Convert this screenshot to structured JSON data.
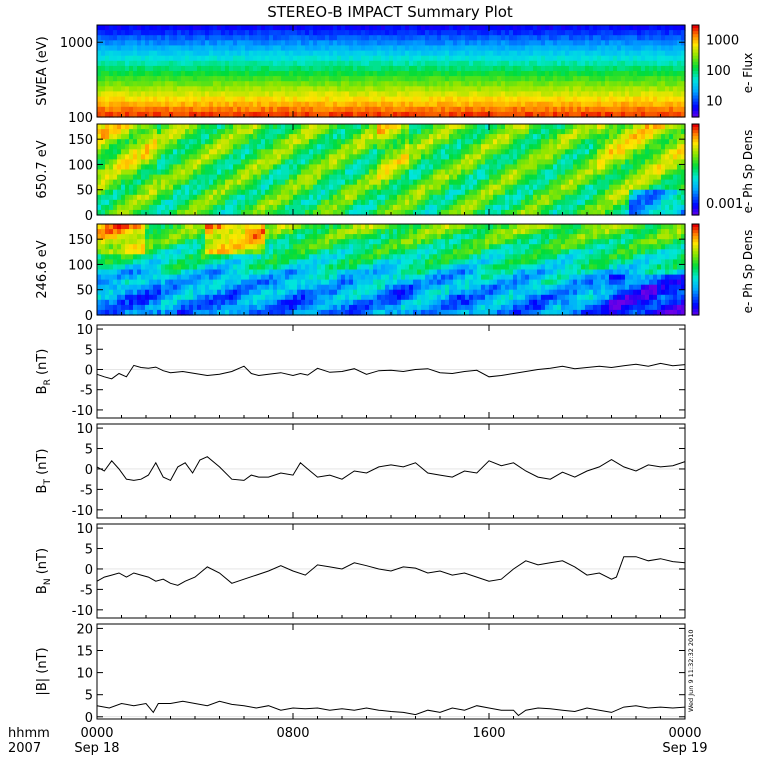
{
  "title": "STEREO-B IMPACT Summary Plot",
  "timestamp": "Wed Jun  9 11:32:32 2010",
  "footer": {
    "time_label": "hhmm",
    "year_label": "2007"
  },
  "chart_data": {
    "type": "multi-panel time series",
    "x_ticks": [
      {
        "time": "0000",
        "date": "Sep 18",
        "hour": 0
      },
      {
        "time": "0800",
        "date": "",
        "hour": 8
      },
      {
        "time": "1600",
        "date": "",
        "hour": 16
      },
      {
        "time": "0000",
        "date": "Sep 19",
        "hour": 24
      }
    ],
    "xlim_hours": [
      0,
      24
    ],
    "panels": [
      {
        "id": "swea",
        "type": "heatmap",
        "ylabel": "SWEA (eV)",
        "yscale": "log",
        "ylim": [
          100,
          1700
        ],
        "yticks": [
          100,
          1000
        ],
        "ytick_labels": [
          "100",
          "1000"
        ],
        "colorbar": {
          "label": "e- Flux",
          "scale": "log",
          "ticks": [
            "10",
            "100",
            "1000"
          ]
        }
      },
      {
        "id": "pad_650",
        "type": "heatmap",
        "ylabel": "650.7 eV",
        "ylim": [
          0,
          180
        ],
        "yticks": [
          0,
          50,
          100,
          150
        ],
        "colorbar": {
          "label": "e- Ph Sp Dens",
          "ticks": [
            "0.001"
          ]
        }
      },
      {
        "id": "pad_246",
        "type": "heatmap",
        "ylabel": "246.6 eV",
        "ylim": [
          0,
          180
        ],
        "yticks": [
          0,
          50,
          100,
          150
        ],
        "colorbar": {
          "label": "e- Ph Sp Dens",
          "ticks": []
        }
      },
      {
        "id": "br",
        "type": "line",
        "ylabel": "B",
        "subscript": "R",
        "unit": "(nT)",
        "ylim": [
          -12,
          11
        ],
        "yticks": [
          -10,
          -5,
          0,
          5,
          10
        ],
        "x": [
          0,
          0.3,
          0.6,
          0.9,
          1.2,
          1.5,
          1.8,
          2.1,
          2.4,
          2.7,
          3.0,
          3.5,
          4.0,
          4.5,
          5.0,
          5.5,
          6.0,
          6.3,
          6.6,
          7.0,
          7.5,
          8.0,
          8.3,
          8.6,
          9.0,
          9.5,
          10.0,
          10.5,
          11.0,
          11.5,
          12.0,
          12.5,
          13.0,
          13.5,
          14.0,
          14.5,
          15.0,
          15.5,
          16.0,
          16.5,
          17.0,
          17.5,
          18.0,
          18.5,
          19.0,
          19.5,
          20.0,
          20.5,
          21.0,
          21.5,
          22.0,
          22.5,
          23.0,
          23.5,
          24.0
        ],
        "y": [
          -1.2,
          -1.8,
          -2.3,
          -1.0,
          -1.8,
          1.0,
          0.5,
          0.3,
          0.6,
          -0.3,
          -0.8,
          -0.5,
          -1.0,
          -1.5,
          -1.2,
          -0.5,
          0.8,
          -1.0,
          -1.5,
          -1.2,
          -0.8,
          -1.5,
          -1.0,
          -1.4,
          0.3,
          -0.7,
          -0.5,
          0.2,
          -1.2,
          -0.3,
          -0.2,
          -0.5,
          0.0,
          0.2,
          -0.8,
          -1.0,
          -0.5,
          -0.2,
          -1.8,
          -1.5,
          -1.0,
          -0.5,
          0.0,
          0.3,
          0.8,
          0.2,
          0.5,
          0.8,
          0.5,
          0.9,
          1.3,
          0.8,
          1.5,
          0.9,
          1.2
        ]
      },
      {
        "id": "bt",
        "type": "line",
        "ylabel": "B",
        "subscript": "T",
        "unit": "(nT)",
        "ylim": [
          -12,
          11
        ],
        "yticks": [
          -10,
          -5,
          0,
          5,
          10
        ],
        "x": [
          0,
          0.3,
          0.6,
          0.9,
          1.2,
          1.5,
          1.8,
          2.1,
          2.4,
          2.7,
          3.0,
          3.3,
          3.6,
          3.9,
          4.2,
          4.5,
          5.0,
          5.5,
          6.0,
          6.3,
          6.6,
          7.0,
          7.5,
          8.0,
          8.3,
          8.6,
          9.0,
          9.5,
          10.0,
          10.5,
          11.0,
          11.5,
          12.0,
          12.5,
          13.0,
          13.5,
          14.0,
          14.5,
          15.0,
          15.5,
          16.0,
          16.5,
          17.0,
          17.5,
          18.0,
          18.5,
          19.0,
          19.5,
          20.0,
          20.5,
          21.0,
          21.5,
          22.0,
          22.5,
          23.0,
          23.5,
          24.0
        ],
        "y": [
          0.5,
          -0.5,
          2.0,
          0.0,
          -2.5,
          -2.8,
          -2.5,
          -1.5,
          1.5,
          -2.0,
          -2.8,
          0.5,
          1.5,
          -1.0,
          2.2,
          3.0,
          0.5,
          -2.5,
          -2.8,
          -1.5,
          -2.0,
          -2.0,
          -1.0,
          -1.5,
          1.5,
          0.0,
          -2.0,
          -1.5,
          -2.5,
          -0.5,
          -1.0,
          0.5,
          1.0,
          0.5,
          1.5,
          -1.0,
          -1.5,
          -2.0,
          -0.5,
          -1.0,
          2.0,
          0.8,
          1.5,
          -0.5,
          -2.0,
          -2.5,
          -0.8,
          -2.0,
          -0.5,
          0.5,
          2.3,
          0.5,
          -0.5,
          1.0,
          0.5,
          0.8,
          1.8
        ]
      },
      {
        "id": "bn",
        "type": "line",
        "ylabel": "B",
        "subscript": "N",
        "unit": "(nT)",
        "ylim": [
          -12,
          11
        ],
        "yticks": [
          -10,
          -5,
          0,
          5,
          10
        ],
        "x": [
          0,
          0.3,
          0.6,
          0.9,
          1.2,
          1.5,
          1.8,
          2.1,
          2.4,
          2.7,
          3.0,
          3.3,
          3.6,
          4.0,
          4.5,
          5.0,
          5.5,
          6.0,
          6.5,
          7.0,
          7.5,
          8.0,
          8.5,
          9.0,
          9.5,
          10.0,
          10.5,
          11.0,
          11.5,
          12.0,
          12.5,
          13.0,
          13.5,
          14.0,
          14.5,
          15.0,
          15.5,
          16.0,
          16.5,
          17.0,
          17.5,
          18.0,
          18.5,
          19.0,
          19.5,
          20.0,
          20.5,
          21.0,
          21.2,
          21.5,
          22.0,
          22.5,
          23.0,
          23.5,
          24.0
        ],
        "y": [
          -3.0,
          -2.0,
          -1.5,
          -1.0,
          -2.0,
          -1.0,
          -1.5,
          -2.0,
          -3.0,
          -2.5,
          -3.5,
          -4.0,
          -3.0,
          -2.0,
          0.5,
          -1.0,
          -3.5,
          -2.5,
          -1.5,
          -0.5,
          0.8,
          -0.5,
          -1.5,
          1.0,
          0.5,
          0.0,
          1.5,
          0.8,
          0.0,
          -0.5,
          0.5,
          0.2,
          -1.0,
          -0.5,
          -1.5,
          -1.0,
          -2.0,
          -3.0,
          -2.5,
          0.0,
          2.0,
          1.0,
          1.5,
          2.0,
          0.5,
          -1.5,
          -1.0,
          -2.5,
          -2.0,
          3.0,
          3.0,
          2.0,
          2.5,
          1.8,
          1.5
        ]
      },
      {
        "id": "bmag",
        "type": "line",
        "ylabel": "|B| (nT)",
        "ylim": [
          -0.5,
          21
        ],
        "yticks": [
          0,
          5,
          10,
          15,
          20
        ],
        "x": [
          0,
          0.5,
          1.0,
          1.5,
          2.0,
          2.3,
          2.5,
          3.0,
          3.5,
          4.0,
          4.5,
          5.0,
          5.5,
          6.0,
          6.5,
          7.0,
          7.5,
          8.0,
          8.5,
          9.0,
          9.5,
          10.0,
          10.5,
          11.0,
          11.5,
          12.0,
          12.5,
          13.0,
          13.5,
          14.0,
          14.5,
          15.0,
          15.5,
          16.0,
          16.5,
          17.0,
          17.2,
          17.5,
          18.0,
          18.5,
          19.0,
          19.5,
          20.0,
          20.5,
          21.0,
          21.5,
          22.0,
          22.5,
          23.0,
          23.5,
          24.0
        ],
        "y": [
          2.5,
          2.0,
          3.0,
          2.5,
          3.0,
          1.0,
          3.0,
          3.0,
          3.5,
          3.0,
          2.5,
          3.5,
          2.8,
          2.5,
          2.0,
          2.5,
          1.5,
          2.0,
          1.8,
          2.0,
          1.5,
          1.8,
          1.5,
          2.0,
          1.5,
          1.2,
          1.0,
          0.5,
          1.5,
          1.0,
          2.0,
          1.5,
          2.5,
          2.0,
          1.5,
          1.5,
          0.3,
          1.5,
          2.0,
          1.8,
          1.5,
          1.2,
          2.0,
          1.5,
          1.0,
          2.2,
          2.5,
          2.0,
          2.2,
          2.0,
          2.2
        ]
      }
    ]
  }
}
